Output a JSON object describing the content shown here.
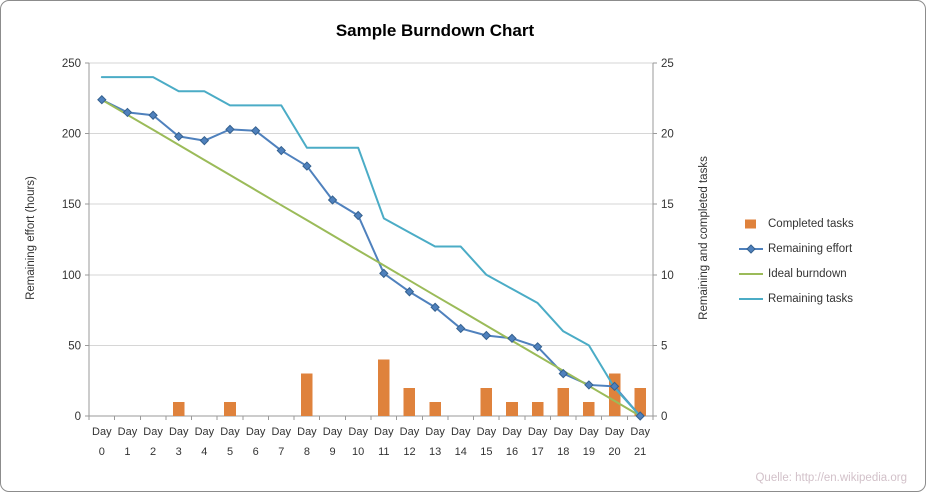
{
  "source_note": "Quelle: http://en.wikipedia.org",
  "chart_data": {
    "type": "line",
    "title": "Sample Burndown Chart",
    "x_prefix": "Day",
    "categories": [
      "0",
      "1",
      "2",
      "3",
      "4",
      "5",
      "6",
      "7",
      "8",
      "9",
      "10",
      "11",
      "12",
      "13",
      "14",
      "15",
      "16",
      "17",
      "18",
      "19",
      "20",
      "21"
    ],
    "left_axis": {
      "label": "Remaining effort (hours)",
      "min": 0,
      "max": 250,
      "step": 50
    },
    "right_axis": {
      "label": "Remaining and completed tasks",
      "min": 0,
      "max": 25,
      "step": 5
    },
    "grid": true,
    "legend_position": "right",
    "colors": {
      "completed_tasks": "#DF823C",
      "remaining_effort": "#4F81BD",
      "remaining_effort_marker_edge": "#35618F",
      "ideal_burndown": "#9BBB59",
      "remaining_tasks": "#4BACC6",
      "gridline": "#D6D6D6",
      "axis_line": "#9A9A9A",
      "tick_text": "#333333"
    },
    "series": [
      {
        "name": "Completed tasks",
        "type": "bar",
        "axis": "right",
        "color": "#DF823C",
        "values": [
          0,
          0,
          0,
          1,
          0,
          1,
          0,
          0,
          3,
          0,
          0,
          4,
          2,
          1,
          0,
          2,
          1,
          1,
          2,
          1,
          3,
          2
        ]
      },
      {
        "name": "Remaining effort",
        "type": "line",
        "axis": "left",
        "color": "#4F81BD",
        "marker": "diamond",
        "values": [
          224,
          215,
          213,
          198,
          195,
          203,
          202,
          188,
          177,
          153,
          142,
          101,
          88,
          77,
          62,
          57,
          55,
          49,
          30,
          22,
          21,
          0
        ]
      },
      {
        "name": "Ideal burndown",
        "type": "line",
        "axis": "left",
        "color": "#9BBB59",
        "values": [
          224,
          213.3,
          202.7,
          192,
          181.3,
          170.7,
          160,
          149.3,
          138.7,
          128,
          117.3,
          106.7,
          96,
          85.3,
          74.7,
          64,
          53.3,
          42.7,
          32,
          21.3,
          10.7,
          0
        ]
      },
      {
        "name": "Remaining tasks",
        "type": "line",
        "axis": "right",
        "color": "#4BACC6",
        "values": [
          24,
          24,
          24,
          23,
          23,
          22,
          22,
          22,
          19,
          19,
          19,
          14,
          13,
          12,
          12,
          10,
          9,
          8,
          6,
          5,
          2,
          0
        ]
      }
    ]
  }
}
